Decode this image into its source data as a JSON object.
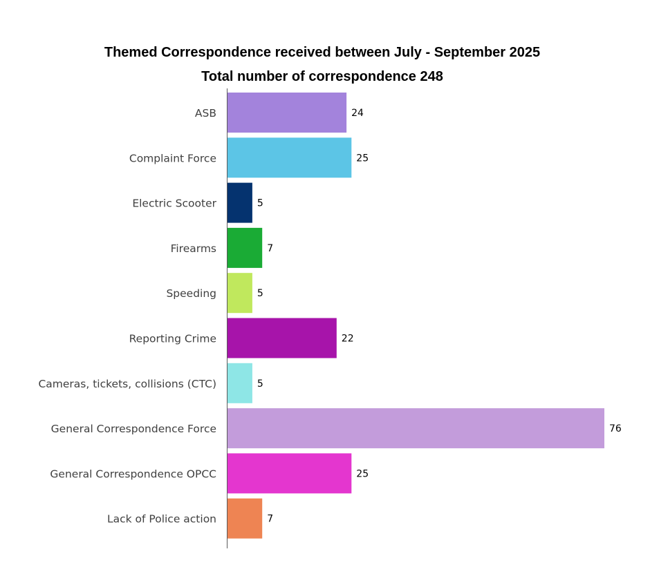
{
  "chart_data": {
    "type": "bar",
    "orientation": "horizontal",
    "title": "Themed Correspondence received between July - September 2025",
    "subtitle": "Total number of correspondence 248",
    "categories": [
      "ASB",
      "Complaint Force",
      "Electric Scooter",
      "Firearms",
      "Speeding",
      "Reporting Crime",
      "Cameras, tickets, collisions (CTC)",
      "General Correspondence Force",
      "General Correspondence OPCC",
      "Lack of Police action"
    ],
    "values": [
      24,
      25,
      5,
      7,
      5,
      22,
      5,
      76,
      25,
      7
    ],
    "colors": [
      "#a383dc",
      "#5cc5e6",
      "#05336f",
      "#1aab35",
      "#c0e85d",
      "#a714aa",
      "#8ee6e6",
      "#c39cdb",
      "#e436cf",
      "#ee8453"
    ],
    "xlim": [
      0,
      76
    ],
    "grid": false,
    "legend": "none",
    "data_labels": true
  }
}
